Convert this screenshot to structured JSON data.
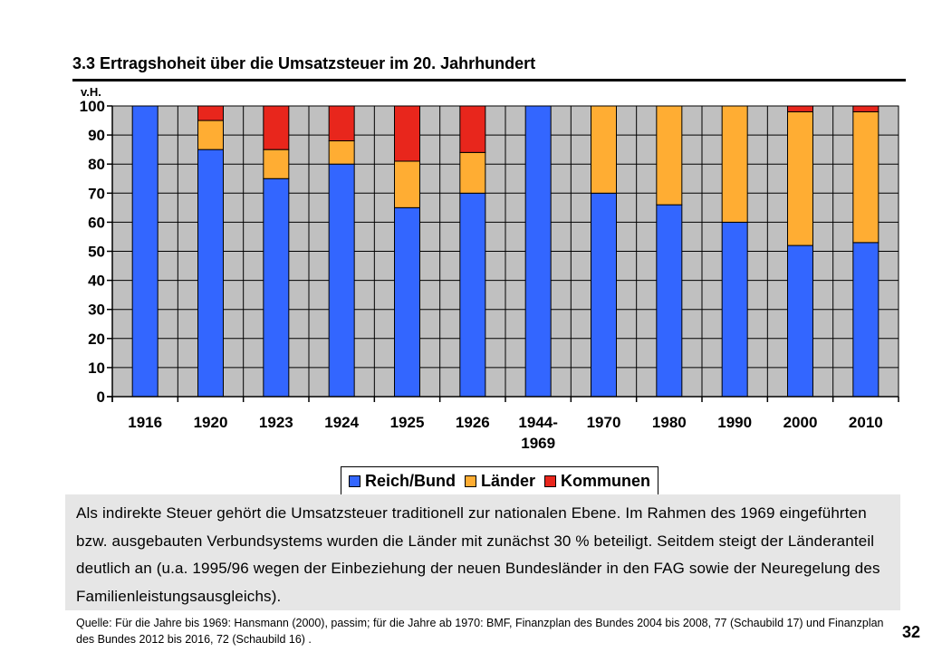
{
  "header": {
    "title": "3.3 Ertragshoheit über die Umsatzsteuer im 20. Jahrhundert"
  },
  "chart_data": {
    "type": "bar",
    "stacked": true,
    "title": "3.3 Ertragshoheit über die Umsatzsteuer im 20. Jahrhundert",
    "ylabel": "v.H.",
    "xlabel": "",
    "ylim": [
      0,
      100
    ],
    "yticks": [
      0,
      10,
      20,
      30,
      40,
      50,
      60,
      70,
      80,
      90,
      100
    ],
    "grid": true,
    "legend_position": "bottom-center",
    "categories": [
      "1916",
      "1920",
      "1923",
      "1924",
      "1925",
      "1926",
      "1944-1969",
      "1970",
      "1980",
      "1990",
      "2000",
      "2010"
    ],
    "category_labels": [
      [
        "1916"
      ],
      [
        "1920"
      ],
      [
        "1923"
      ],
      [
        "1924"
      ],
      [
        "1925"
      ],
      [
        "1926"
      ],
      [
        "1944-",
        "1969"
      ],
      [
        "1970"
      ],
      [
        "1980"
      ],
      [
        "1990"
      ],
      [
        "2000"
      ],
      [
        "2010"
      ]
    ],
    "series": [
      {
        "name": "Reich/Bund",
        "color": "#3366ff",
        "values": [
          100,
          85,
          75,
          80,
          65,
          70,
          100,
          70,
          66,
          60,
          52,
          53
        ]
      },
      {
        "name": "Länder",
        "color": "#ffad33",
        "values": [
          0,
          10,
          10,
          8,
          16,
          14,
          0,
          30,
          34,
          40,
          46,
          45
        ]
      },
      {
        "name": "Kommunen",
        "color": "#e8261c",
        "values": [
          0,
          5,
          15,
          12,
          19,
          16,
          0,
          0,
          0,
          0,
          2,
          2
        ]
      }
    ],
    "plot_background": "#c0c0c0"
  },
  "legend": {
    "items": [
      {
        "label": "Reich/Bund",
        "color": "#3366ff"
      },
      {
        "label": "Länder",
        "color": "#ffad33"
      },
      {
        "label": "Kommunen",
        "color": "#e8261c"
      }
    ]
  },
  "body": {
    "text": "Als indirekte Steuer gehört die Umsatzsteuer traditionell zur nationalen Ebene. Im Rahmen des 1969 eingeführten bzw. ausgebauten Verbundsystems wurden die Länder mit zunächst 30 % beteiligt. Seitdem steigt der Länderanteil deutlich an (u.a. 1995/96 wegen der Einbeziehung der neuen Bundesländer in den FAG sowie der Neuregelung des Familienleistungsausgleichs)."
  },
  "footer": {
    "source": "Quelle: Für die Jahre bis 1969: Hansmann (2000), passim; für die Jahre ab 1970: BMF, Finanzplan des Bundes 2004 bis 2008, 77 (Schaubild 17) und Finanzplan des Bundes 2012 bis 2016, 72 (Schaubild 16) .",
    "page_number": "32"
  }
}
